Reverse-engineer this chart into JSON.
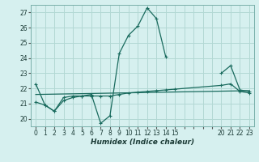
{
  "xlabel": "Humidex (Indice chaleur)",
  "background_color": "#d6f0ef",
  "grid_color": "#b2d8d4",
  "line_color": "#1a6b5e",
  "ylim": [
    19.5,
    27.5
  ],
  "yticks": [
    20,
    21,
    22,
    23,
    24,
    25,
    26,
    27
  ],
  "xtick_labels": [
    "0",
    "1",
    "2",
    "3",
    "4",
    "5",
    "6",
    "7",
    "8",
    "9",
    "10",
    "11",
    "12",
    "13",
    "14",
    "15",
    "",
    "",
    "",
    "",
    "20",
    "21",
    "22",
    "23"
  ],
  "xtick_positions": [
    0,
    1,
    2,
    3,
    4,
    5,
    6,
    7,
    8,
    9,
    10,
    11,
    12,
    13,
    14,
    15,
    16,
    17,
    18,
    19,
    20,
    21,
    22,
    23
  ],
  "xlim": [
    -0.5,
    23.5
  ],
  "series1_x": [
    0,
    1,
    2,
    3,
    4,
    5,
    6,
    7,
    8,
    9,
    10,
    11,
    12,
    13,
    14,
    20,
    21,
    22,
    23
  ],
  "series1_y": [
    22.3,
    20.9,
    20.5,
    21.4,
    21.5,
    21.5,
    21.6,
    19.7,
    20.2,
    24.3,
    25.5,
    26.1,
    27.3,
    26.6,
    24.1,
    23.0,
    23.5,
    21.9,
    21.8
  ],
  "series1_breaks": [
    14,
    20
  ],
  "series2_x": [
    0,
    1,
    2,
    3,
    4,
    5,
    6,
    7,
    8,
    9,
    10,
    11,
    12,
    13,
    14,
    15,
    20,
    21,
    22,
    23
  ],
  "series2_y": [
    21.1,
    20.9,
    20.5,
    21.2,
    21.4,
    21.5,
    21.5,
    21.5,
    21.5,
    21.6,
    21.7,
    21.75,
    21.8,
    21.85,
    21.9,
    21.95,
    22.2,
    22.3,
    21.8,
    21.7
  ],
  "series3_x": [
    0,
    23
  ],
  "series3_y": [
    21.6,
    21.85
  ]
}
